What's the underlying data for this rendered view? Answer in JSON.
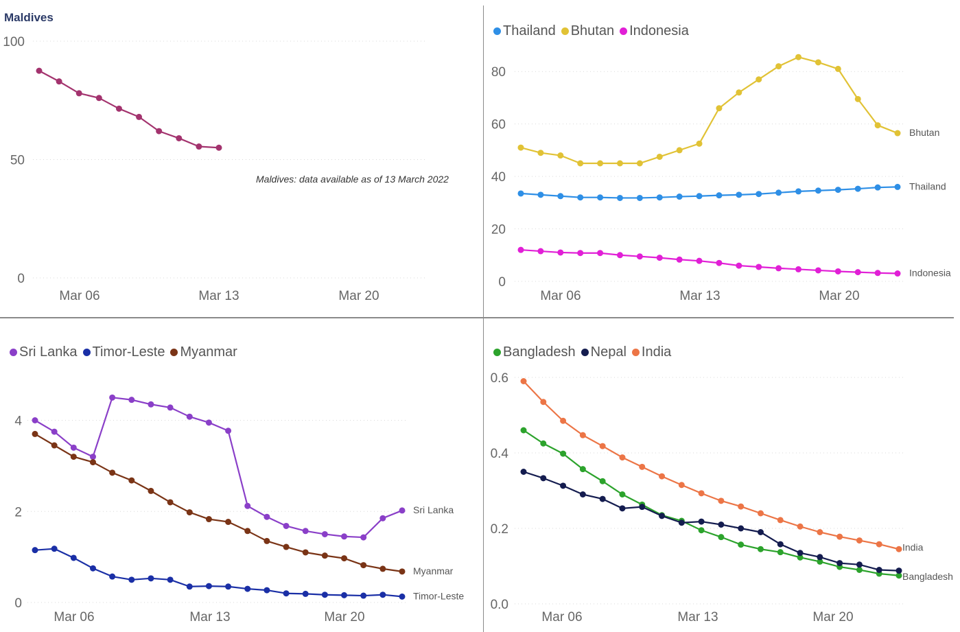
{
  "chart_data": [
    {
      "type": "line",
      "title": "Maldives",
      "annotation": "Maldives: data available as of 13 March 2022",
      "x_labels": [
        "Mar 06",
        "Mar 13",
        "Mar 20"
      ],
      "y_ticks": [
        "100",
        "50",
        "0"
      ],
      "ylim": [
        0,
        100
      ],
      "grid": true,
      "legend": "none",
      "series": [
        {
          "name": "Maldives",
          "color": "#a3336e",
          "end_label": "",
          "values": [
            87.5,
            83,
            78,
            76,
            71.5,
            68,
            62,
            59,
            55.5,
            55
          ]
        }
      ]
    },
    {
      "type": "line",
      "x_labels": [
        "Mar 06",
        "Mar 13",
        "Mar 20"
      ],
      "y_ticks": [
        "80",
        "60",
        "40",
        "20",
        "0"
      ],
      "ylim": [
        0,
        90
      ],
      "grid": true,
      "legend": "top-left",
      "series": [
        {
          "name": "Thailand",
          "color": "#2e8fe6",
          "end_label": "Thailand",
          "values": [
            33.5,
            33,
            32.5,
            32,
            32,
            31.8,
            31.8,
            32,
            32.3,
            32.5,
            32.8,
            33,
            33.3,
            33.8,
            34.3,
            34.6,
            34.9,
            35.3,
            35.8,
            36
          ]
        },
        {
          "name": "Bhutan",
          "color": "#e1c235",
          "end_label": "Bhutan",
          "values": [
            51,
            49,
            48,
            45,
            45,
            45,
            45,
            47.5,
            50,
            52.5,
            66,
            72,
            77,
            82,
            85.5,
            83.5,
            81,
            69.5,
            59.5,
            56.5
          ]
        },
        {
          "name": "Indonesia",
          "color": "#e11fd6",
          "end_label": "Indonesia",
          "values": [
            12,
            11.5,
            11,
            10.8,
            10.8,
            10,
            9.5,
            9,
            8.3,
            7.8,
            7,
            6,
            5.5,
            5,
            4.6,
            4.2,
            3.8,
            3.5,
            3.2,
            3
          ]
        }
      ]
    },
    {
      "type": "line",
      "x_labels": [
        "Mar 06",
        "Mar 13",
        "Mar 20"
      ],
      "y_ticks": [
        "4",
        "2",
        "0"
      ],
      "ylim": [
        0,
        4
      ],
      "grid": true,
      "legend": "top-left",
      "series": [
        {
          "name": "Sri Lanka",
          "color": "#8a3fc8",
          "end_label": "Sri Lanka",
          "values": [
            4.0,
            3.75,
            3.4,
            3.2,
            4.5,
            4.45,
            4.35,
            4.28,
            4.08,
            3.95,
            3.77,
            2.12,
            1.88,
            1.68,
            1.57,
            1.5,
            1.45,
            1.43,
            1.85,
            2.02
          ]
        },
        {
          "name": "Timor-Leste",
          "color": "#1a2fa6",
          "end_label": "Timor-Leste",
          "values": [
            1.15,
            1.18,
            0.98,
            0.75,
            0.57,
            0.5,
            0.53,
            0.5,
            0.35,
            0.36,
            0.35,
            0.3,
            0.27,
            0.2,
            0.19,
            0.17,
            0.16,
            0.15,
            0.17,
            0.13
          ]
        },
        {
          "name": "Myanmar",
          "color": "#7a3416",
          "end_label": "Myanmar",
          "values": [
            3.7,
            3.45,
            3.2,
            3.08,
            2.85,
            2.68,
            2.45,
            2.2,
            1.98,
            1.83,
            1.77,
            1.57,
            1.35,
            1.22,
            1.1,
            1.03,
            0.97,
            0.82,
            0.74,
            0.68
          ]
        }
      ]
    },
    {
      "type": "line",
      "x_labels": [
        "Mar 06",
        "Mar 13",
        "Mar 20"
      ],
      "y_ticks": [
        "0.6",
        "0.4",
        "0.2",
        "0.0"
      ],
      "ylim": [
        0,
        0.6
      ],
      "grid": true,
      "legend": "top-left",
      "series": [
        {
          "name": "Bangladesh",
          "color": "#2ca32c",
          "end_label": "Bangladesh",
          "values": [
            0.46,
            0.425,
            0.398,
            0.357,
            0.325,
            0.29,
            0.263,
            0.235,
            0.22,
            0.195,
            0.177,
            0.157,
            0.145,
            0.137,
            0.123,
            0.112,
            0.098,
            0.09,
            0.08,
            0.075
          ]
        },
        {
          "name": "Nepal",
          "color": "#141c4f",
          "end_label": "",
          "values": [
            0.35,
            0.333,
            0.313,
            0.29,
            0.278,
            0.253,
            0.257,
            0.233,
            0.215,
            0.218,
            0.21,
            0.2,
            0.19,
            0.158,
            0.135,
            0.124,
            0.108,
            0.104,
            0.09,
            0.088
          ]
        },
        {
          "name": "India",
          "color": "#ec7546",
          "end_label": "India",
          "values": [
            0.59,
            0.535,
            0.485,
            0.447,
            0.418,
            0.388,
            0.363,
            0.338,
            0.315,
            0.293,
            0.273,
            0.258,
            0.24,
            0.222,
            0.205,
            0.19,
            0.178,
            0.168,
            0.158,
            0.145
          ]
        }
      ]
    }
  ]
}
